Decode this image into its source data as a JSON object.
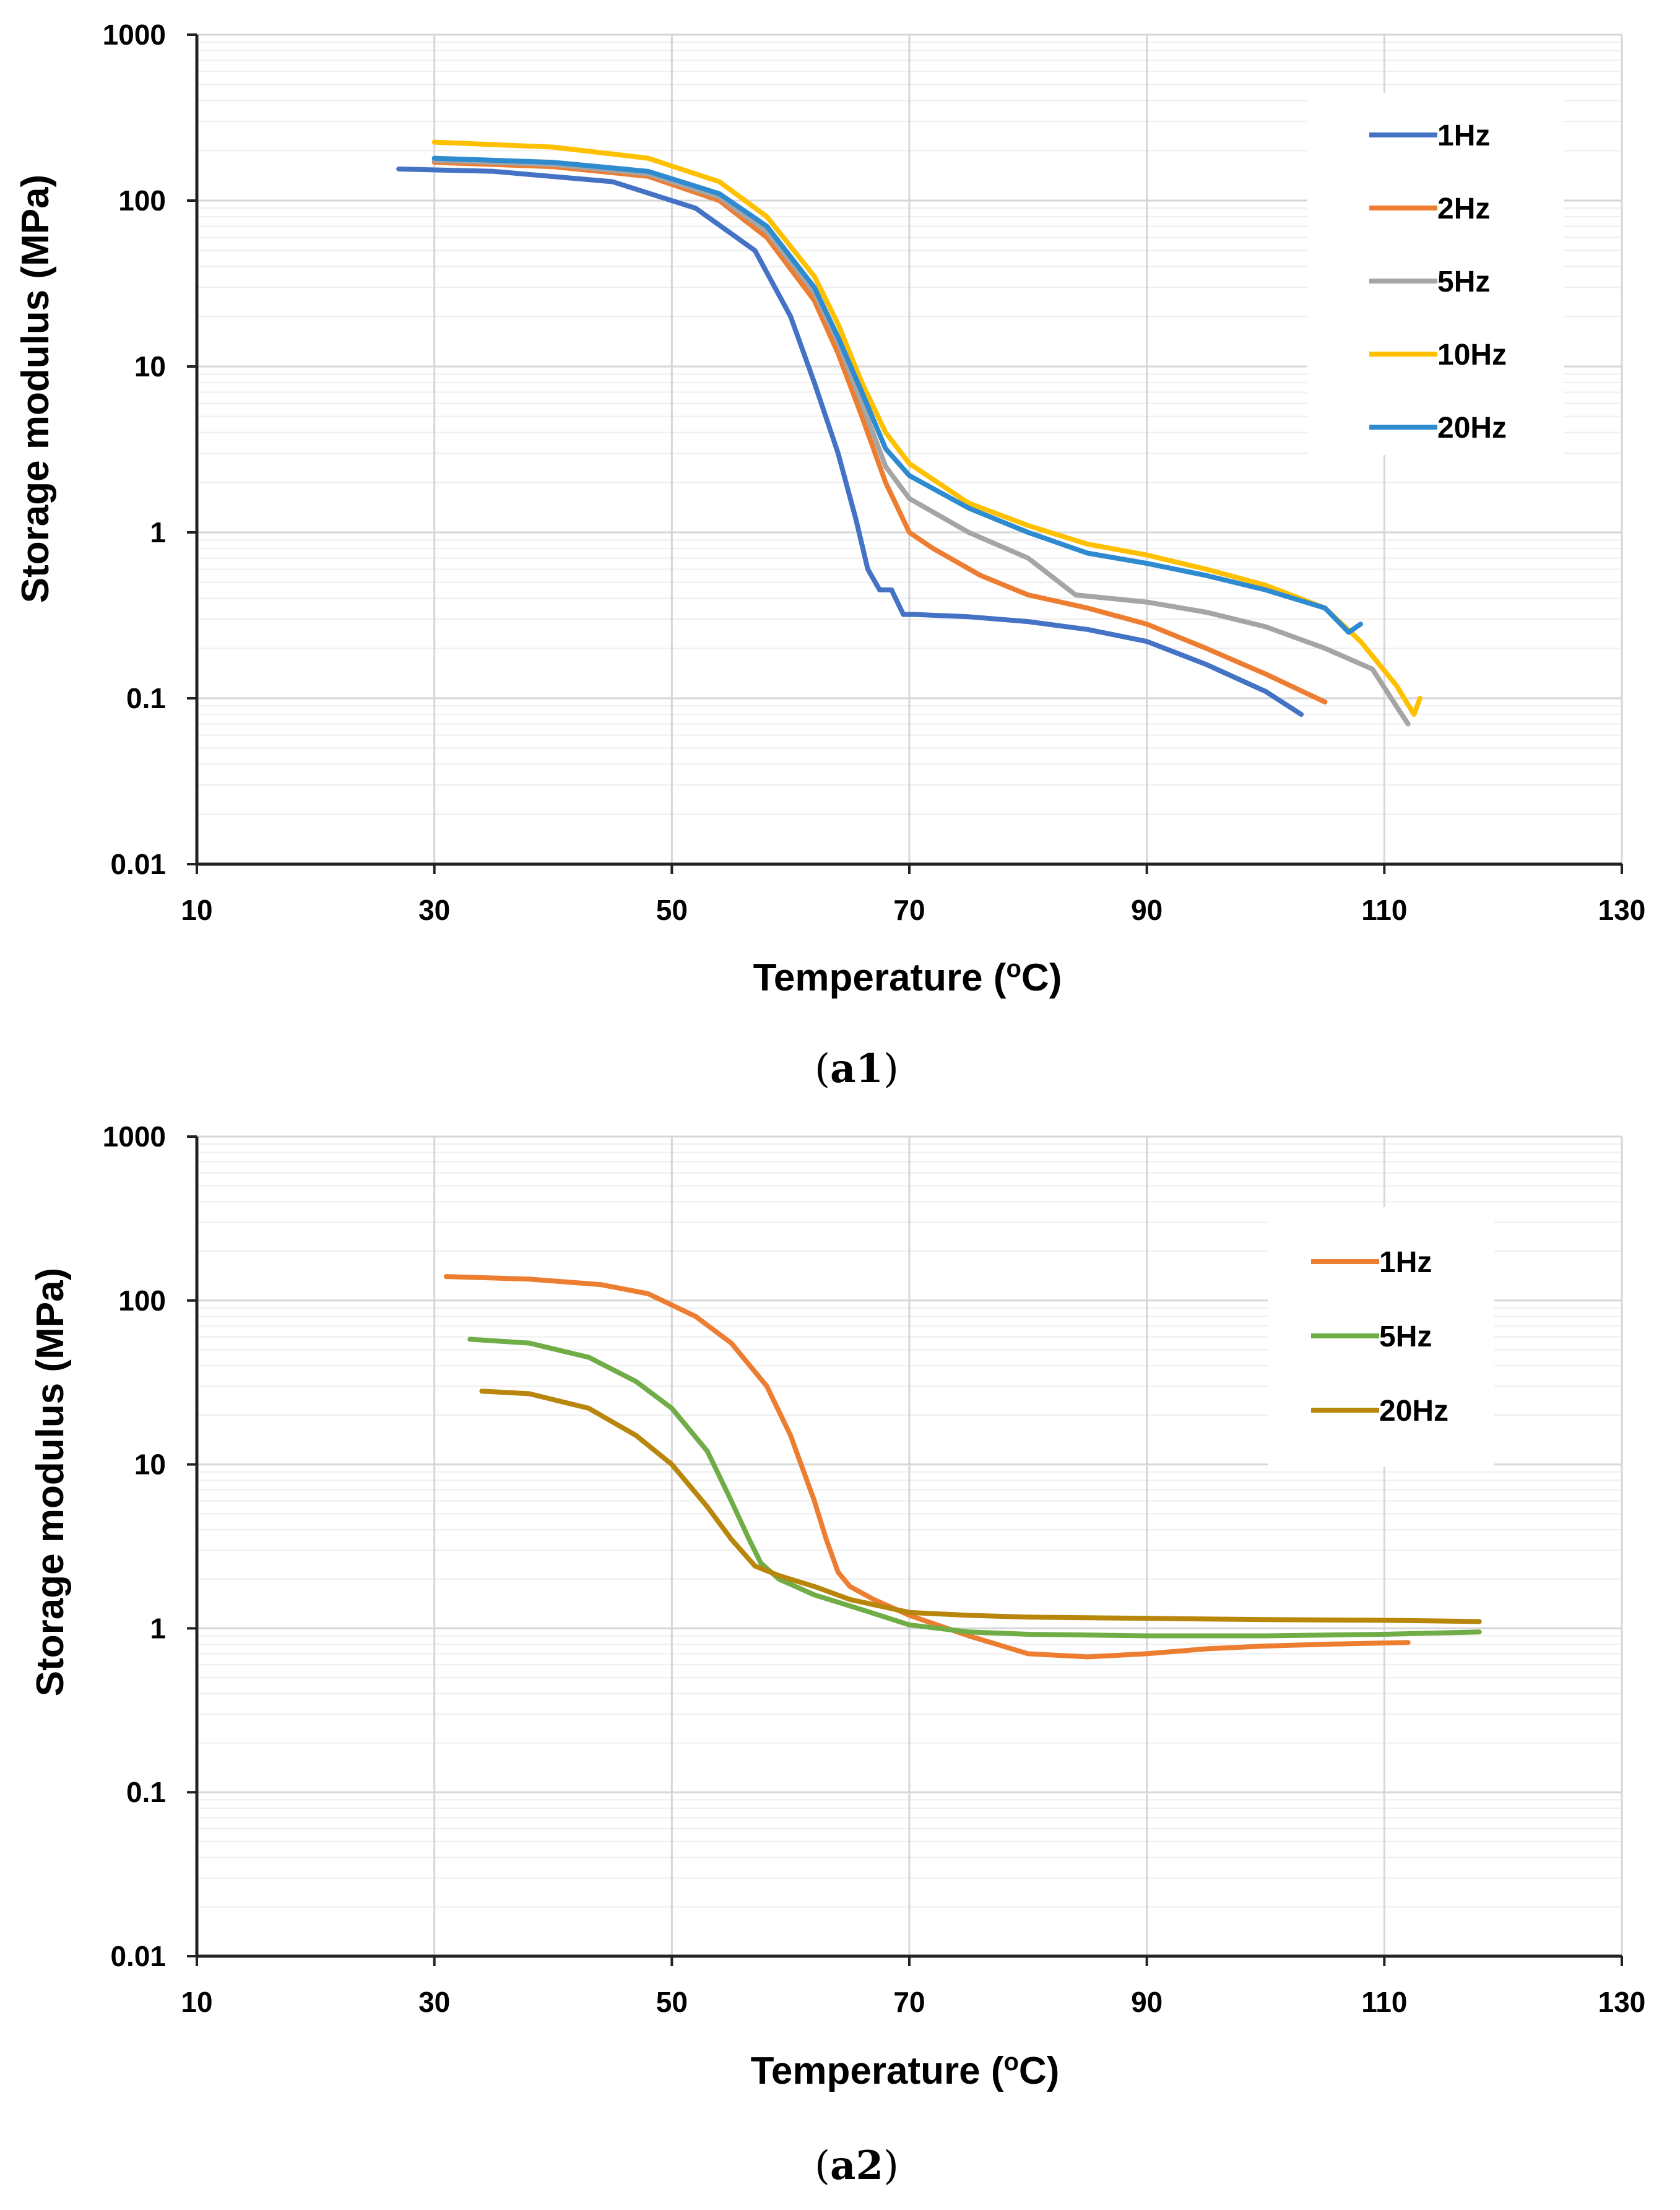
{
  "chart_data": [
    {
      "type": "line",
      "panel": "a1",
      "caption": "a1",
      "xlabel_main": "Temperature (",
      "xlabel_sup": "o",
      "xlabel_end": "C)",
      "ylabel": "Storage modulus (MPa)",
      "x_scale": "linear",
      "y_scale": "log",
      "xlim": [
        10,
        130
      ],
      "ylim": [
        0.01,
        1000
      ],
      "x_ticks": [
        10,
        30,
        50,
        70,
        90,
        110,
        130
      ],
      "x_tick_labels": [
        "10",
        "30",
        "50",
        "70",
        "90",
        "110",
        "130"
      ],
      "y_ticks": [
        0.01,
        0.1,
        1,
        10,
        100,
        1000
      ],
      "y_tick_labels": [
        "0.01",
        "0.1",
        "1",
        "10",
        "100",
        "1000"
      ],
      "grid": true,
      "legend_position": "top-right",
      "series": [
        {
          "name": "1Hz",
          "color": "#4472C4",
          "x": [
            27,
            35,
            45,
            52,
            57,
            60,
            62,
            64,
            65.5,
            66.5,
            67.5,
            68.5,
            69.5,
            70.5,
            75,
            80,
            85,
            90,
            95,
            100,
            103
          ],
          "y": [
            155,
            150,
            130,
            90,
            50,
            20,
            8,
            3,
            1.2,
            0.6,
            0.45,
            0.45,
            0.32,
            0.32,
            0.31,
            0.29,
            0.26,
            0.22,
            0.16,
            0.11,
            0.08
          ]
        },
        {
          "name": "2Hz",
          "color": "#ED7D31",
          "x": [
            30,
            40,
            48,
            54,
            58,
            62,
            64,
            66,
            68,
            70,
            72,
            76,
            80,
            85,
            90,
            95,
            100,
            105
          ],
          "y": [
            170,
            160,
            140,
            100,
            60,
            25,
            12,
            5,
            2,
            1.0,
            0.8,
            0.55,
            0.42,
            0.35,
            0.28,
            0.2,
            0.14,
            0.095
          ]
        },
        {
          "name": "5Hz",
          "color": "#A5A5A5",
          "x": [
            30,
            40,
            48,
            54,
            58,
            62,
            64,
            66,
            68,
            70,
            75,
            80,
            84,
            90,
            95,
            100,
            105,
            109,
            111,
            112
          ],
          "y": [
            175,
            165,
            145,
            105,
            65,
            28,
            14,
            6,
            2.5,
            1.6,
            1.0,
            0.7,
            0.42,
            0.38,
            0.33,
            0.27,
            0.2,
            0.15,
            0.09,
            0.07
          ]
        },
        {
          "name": "10Hz",
          "color": "#FFC000",
          "x": [
            30,
            40,
            48,
            54,
            58,
            62,
            64,
            66,
            68,
            70,
            75,
            80,
            85,
            90,
            95,
            100,
            105,
            108,
            111,
            112.5,
            113
          ],
          "y": [
            225,
            210,
            180,
            130,
            80,
            35,
            18,
            8,
            4,
            2.6,
            1.5,
            1.1,
            0.85,
            0.73,
            0.6,
            0.48,
            0.35,
            0.22,
            0.12,
            0.08,
            0.1
          ]
        },
        {
          "name": "20Hz",
          "color": "#2E8BD0",
          "x": [
            30,
            40,
            48,
            54,
            58,
            62,
            64,
            66,
            68,
            70,
            75,
            80,
            85,
            90,
            95,
            100,
            105,
            107,
            108
          ],
          "y": [
            180,
            170,
            150,
            110,
            70,
            30,
            15,
            7,
            3.2,
            2.2,
            1.4,
            1.0,
            0.75,
            0.65,
            0.55,
            0.45,
            0.35,
            0.25,
            0.28
          ]
        }
      ]
    },
    {
      "type": "line",
      "panel": "a2",
      "caption": "a2",
      "xlabel_main": "Temperature (",
      "xlabel_sup": "o",
      "xlabel_end": "C)",
      "ylabel": "Storage modulus (MPa)",
      "x_scale": "linear",
      "y_scale": "log",
      "xlim": [
        10,
        130
      ],
      "ylim": [
        0.01,
        1000
      ],
      "x_ticks": [
        10,
        30,
        50,
        70,
        90,
        110,
        130
      ],
      "x_tick_labels": [
        "10",
        "30",
        "50",
        "70",
        "90",
        "110",
        "130"
      ],
      "y_ticks": [
        0.01,
        0.1,
        1,
        10,
        100,
        1000
      ],
      "y_tick_labels": [
        "0.01",
        "0.1",
        "1",
        "10",
        "100",
        "1000"
      ],
      "grid": true,
      "legend_position": "top-right",
      "series": [
        {
          "name": "1Hz",
          "color": "#ED7D31",
          "x": [
            31,
            38,
            44,
            48,
            52,
            55,
            58,
            60,
            62,
            63,
            64,
            65,
            67,
            70,
            75,
            80,
            85,
            90,
            95,
            100,
            105,
            112
          ],
          "y": [
            140,
            135,
            125,
            110,
            80,
            55,
            30,
            15,
            6,
            3.5,
            2.2,
            1.8,
            1.5,
            1.2,
            0.9,
            0.7,
            0.67,
            0.7,
            0.75,
            0.78,
            0.8,
            0.82
          ]
        },
        {
          "name": "5Hz",
          "color": "#70AD47",
          "x": [
            33,
            38,
            43,
            47,
            50,
            53,
            55,
            56.5,
            57.5,
            59,
            62,
            66,
            70,
            75,
            80,
            90,
            100,
            110,
            118
          ],
          "y": [
            58,
            55,
            45,
            32,
            22,
            12,
            6,
            3.5,
            2.5,
            2.0,
            1.6,
            1.3,
            1.05,
            0.95,
            0.92,
            0.9,
            0.9,
            0.92,
            0.95
          ]
        },
        {
          "name": "20Hz",
          "color": "#B8860B",
          "x": [
            34,
            38,
            43,
            47,
            50,
            53,
            55,
            57,
            59,
            62,
            65,
            70,
            75,
            80,
            90,
            100,
            110,
            118
          ],
          "y": [
            28,
            27,
            22,
            15,
            10,
            5.5,
            3.5,
            2.4,
            2.1,
            1.8,
            1.5,
            1.25,
            1.2,
            1.17,
            1.15,
            1.13,
            1.12,
            1.1
          ]
        }
      ]
    }
  ]
}
